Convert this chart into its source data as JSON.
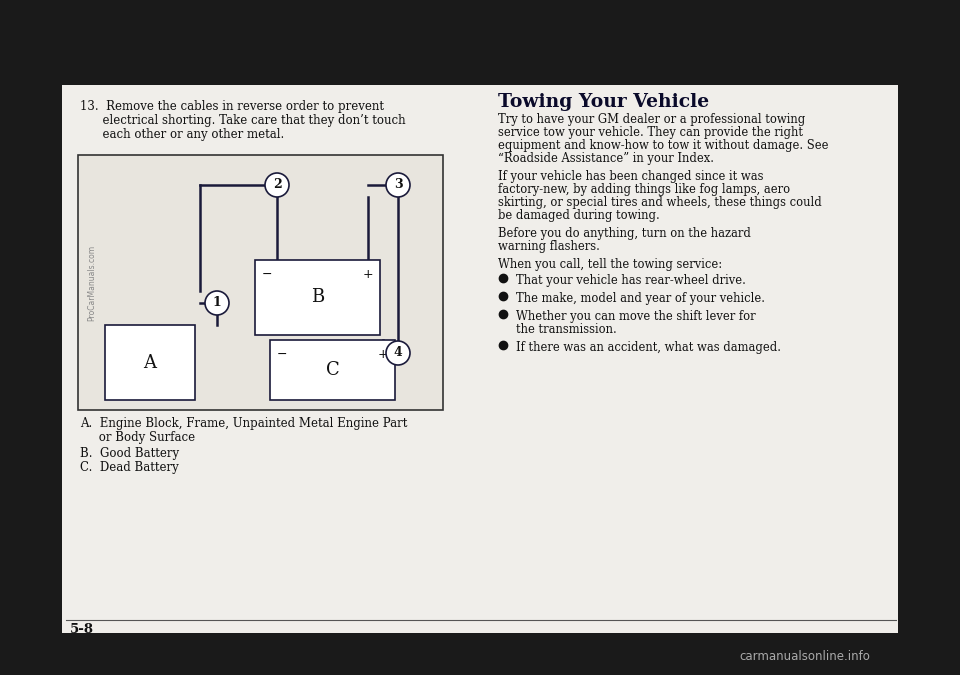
{
  "outer_bg": "#1a1a1a",
  "page_bg": "#f0eeea",
  "diagram_bg": "#ddd9d0",
  "line_color": "#1a1a3a",
  "text_color": "#111111",
  "title": "Towing Your Vehicle",
  "step13_line1": "13.  Remove the cables in reverse order to prevent",
  "step13_line2": "      electrical shorting. Take care that they don’t touch",
  "step13_line3": "      each other or any other metal.",
  "legend_a1": "A.  Engine Block, Frame, Unpainted Metal Engine Part",
  "legend_a2": "     or Body Surface",
  "legend_b": "B.  Good Battery",
  "legend_c": "C.  Dead Battery",
  "towing_para1": "Try to have your GM dealer or a professional towing\nservice tow your vehicle. They can provide the right\nequipment and know-how to tow it without damage. See\n“Roadside Assistance” in your Index.",
  "towing_para2": "If your vehicle has been changed since it was\nfactory-new, by adding things like fog lamps, aero\nskirting, or special tires and wheels, these things could\nbe damaged during towing.",
  "towing_para3": "Before you do anything, turn on the hazard\nwarning flashers.",
  "towing_para4": "When you call, tell the towing service:",
  "bullets": [
    "That your vehicle has rear-wheel drive.",
    "The make, model and year of your vehicle.",
    "Whether you can move the shift lever for\nthe transmission.",
    "If there was an accident, what was damaged."
  ],
  "page_num": "5-8",
  "watermark": "ProCarManuals.com",
  "carmanuals_text": "carmanualsonline.info"
}
